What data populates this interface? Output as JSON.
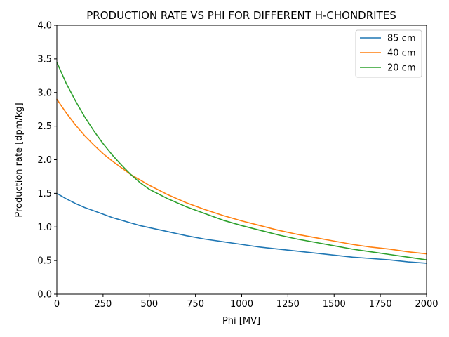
{
  "chart_data": {
    "type": "line",
    "title": "PRODUCTION RATE VS PHI FOR DIFFERENT H-CHONDRITES",
    "xlabel": "Phi [MV]",
    "ylabel": "Production rate [dpm/kg]",
    "xlim": [
      0,
      2000
    ],
    "ylim": [
      0.0,
      4.0
    ],
    "xticks": [
      0,
      250,
      500,
      750,
      1000,
      1250,
      1500,
      1750,
      2000
    ],
    "xtick_labels": [
      "0",
      "250",
      "500",
      "750",
      "1000",
      "1250",
      "1500",
      "1750",
      "2000"
    ],
    "yticks": [
      0.0,
      0.5,
      1.0,
      1.5,
      2.0,
      2.5,
      3.0,
      3.5,
      4.0
    ],
    "ytick_labels": [
      "0.0",
      "0.5",
      "1.0",
      "1.5",
      "2.0",
      "2.5",
      "3.0",
      "3.5",
      "4.0"
    ],
    "legend_position": "top-right",
    "x": [
      0,
      50,
      100,
      150,
      200,
      250,
      300,
      350,
      400,
      450,
      500,
      600,
      700,
      800,
      900,
      1000,
      1100,
      1200,
      1300,
      1400,
      1500,
      1600,
      1700,
      1800,
      1900,
      2000
    ],
    "series": [
      {
        "name": "85 cm",
        "color": "#1f77b4",
        "values": [
          1.5,
          1.42,
          1.35,
          1.29,
          1.24,
          1.19,
          1.14,
          1.1,
          1.06,
          1.02,
          0.99,
          0.93,
          0.87,
          0.82,
          0.78,
          0.74,
          0.7,
          0.67,
          0.64,
          0.61,
          0.58,
          0.55,
          0.53,
          0.51,
          0.48,
          0.46
        ]
      },
      {
        "name": "40 cm",
        "color": "#ff7f0e",
        "values": [
          2.9,
          2.7,
          2.52,
          2.36,
          2.22,
          2.09,
          1.98,
          1.88,
          1.78,
          1.7,
          1.62,
          1.48,
          1.36,
          1.26,
          1.17,
          1.09,
          1.02,
          0.95,
          0.89,
          0.84,
          0.79,
          0.74,
          0.7,
          0.67,
          0.63,
          0.6
        ]
      },
      {
        "name": "20 cm",
        "color": "#2ca02c",
        "values": [
          3.45,
          3.14,
          2.88,
          2.64,
          2.43,
          2.24,
          2.07,
          1.92,
          1.78,
          1.66,
          1.56,
          1.42,
          1.3,
          1.2,
          1.1,
          1.02,
          0.95,
          0.88,
          0.82,
          0.77,
          0.72,
          0.67,
          0.63,
          0.59,
          0.55,
          0.51
        ]
      }
    ]
  }
}
